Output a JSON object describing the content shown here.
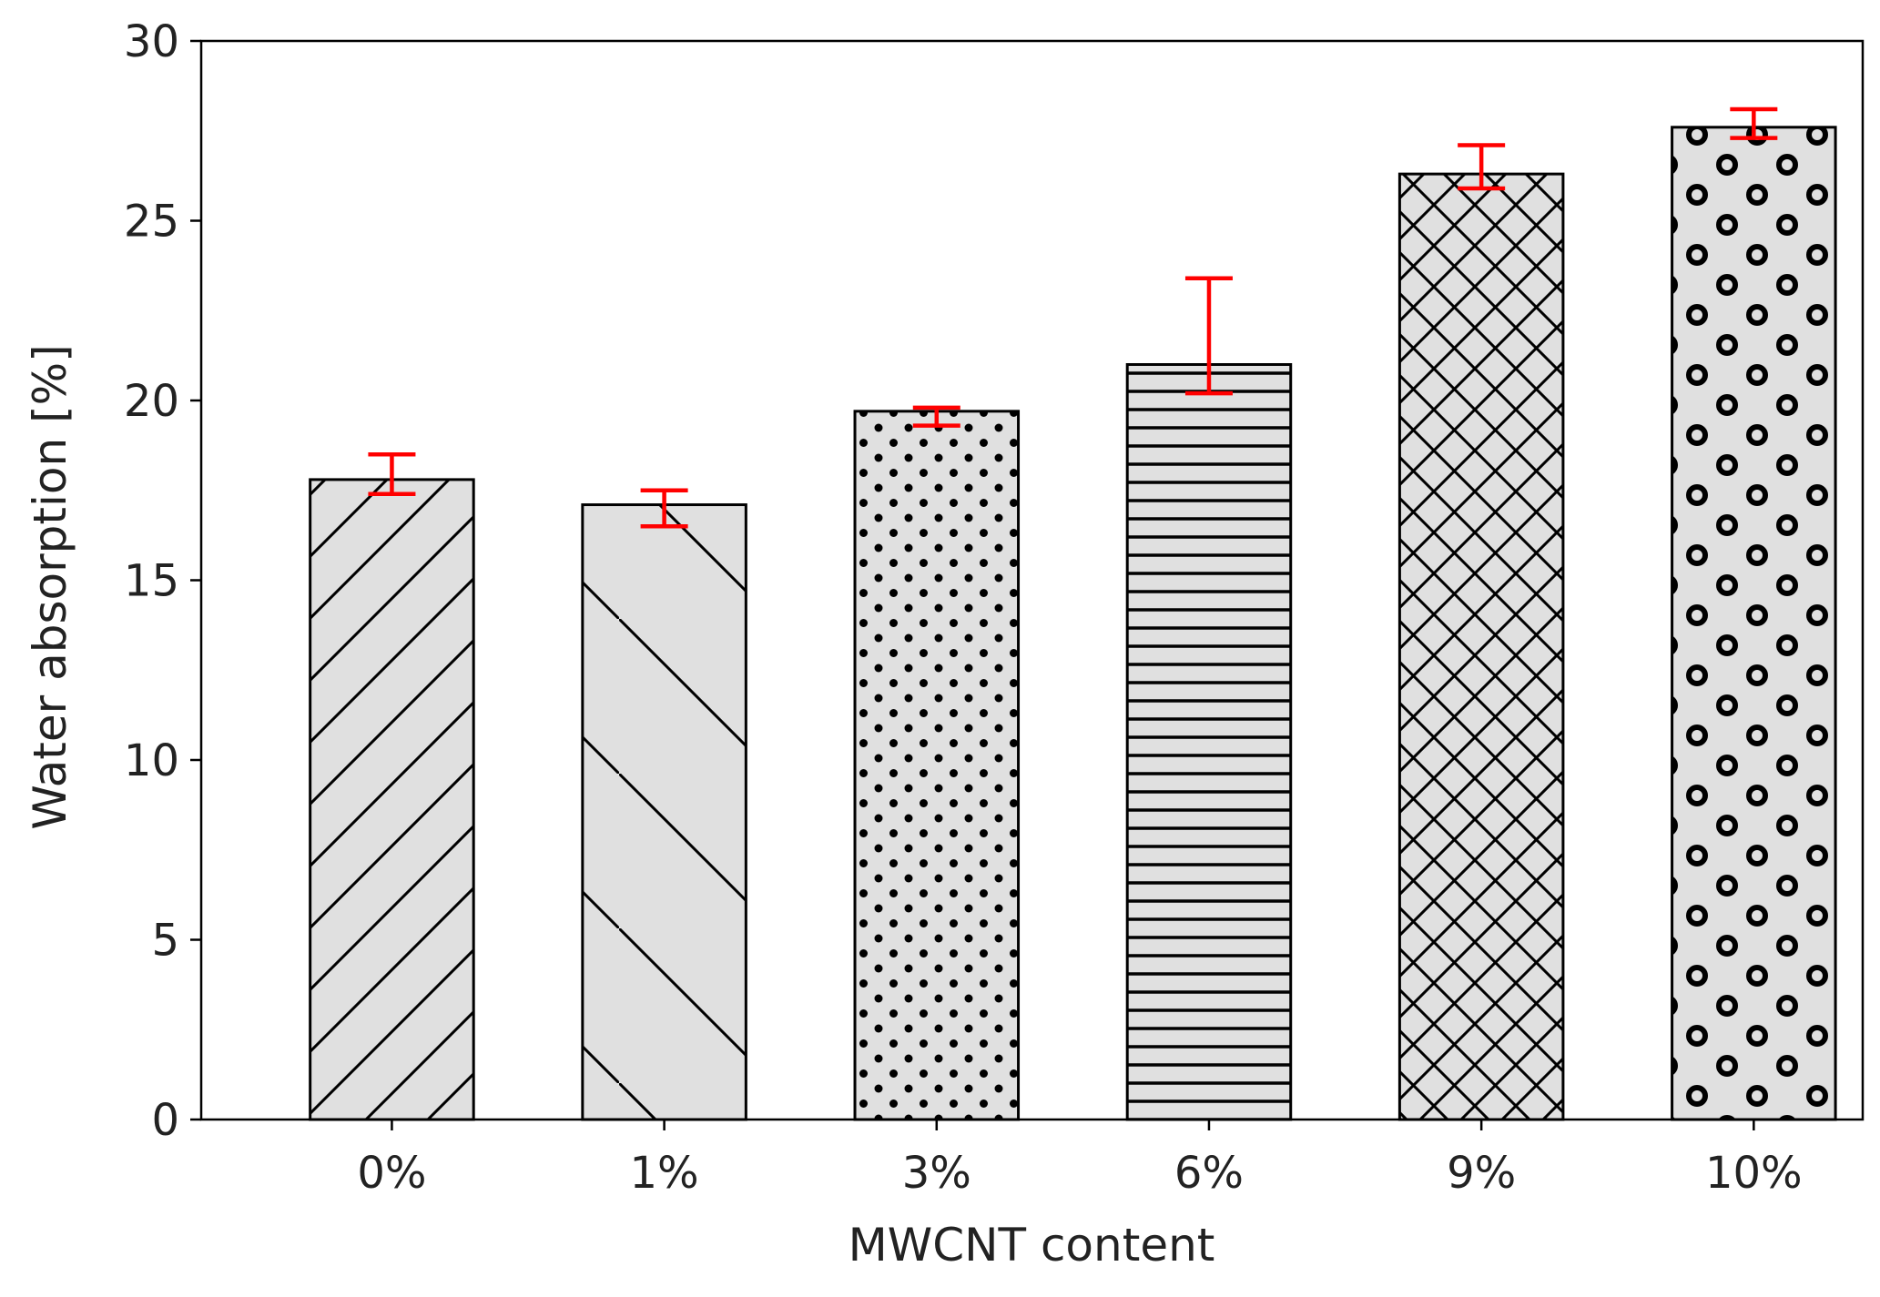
{
  "chart_data": {
    "type": "bar",
    "title": "",
    "xlabel": "MWCNT content",
    "ylabel": "Water absorption [%]",
    "categories": [
      "0%",
      "1%",
      "3%",
      "6%",
      "9%",
      "10%"
    ],
    "values": [
      17.8,
      17.1,
      19.7,
      21.0,
      26.3,
      27.6
    ],
    "error_low": [
      17.4,
      16.5,
      19.3,
      20.2,
      25.9,
      27.3
    ],
    "error_high": [
      18.5,
      17.5,
      19.8,
      23.4,
      27.1,
      28.1
    ],
    "ylim": [
      0,
      30
    ],
    "yticks": [
      0,
      5,
      10,
      15,
      20,
      25,
      30
    ],
    "ytick_labels": [
      "0",
      "5",
      "10",
      "15",
      "20",
      "25",
      "30"
    ],
    "hatches": [
      "diagonal-up",
      "diagonal-down",
      "dots",
      "horizontal-lines",
      "crosshatch",
      "rings"
    ],
    "grid": false,
    "bar_color": "#e0e0e0",
    "edge_color": "#000000",
    "error_color": "#ff0000"
  }
}
